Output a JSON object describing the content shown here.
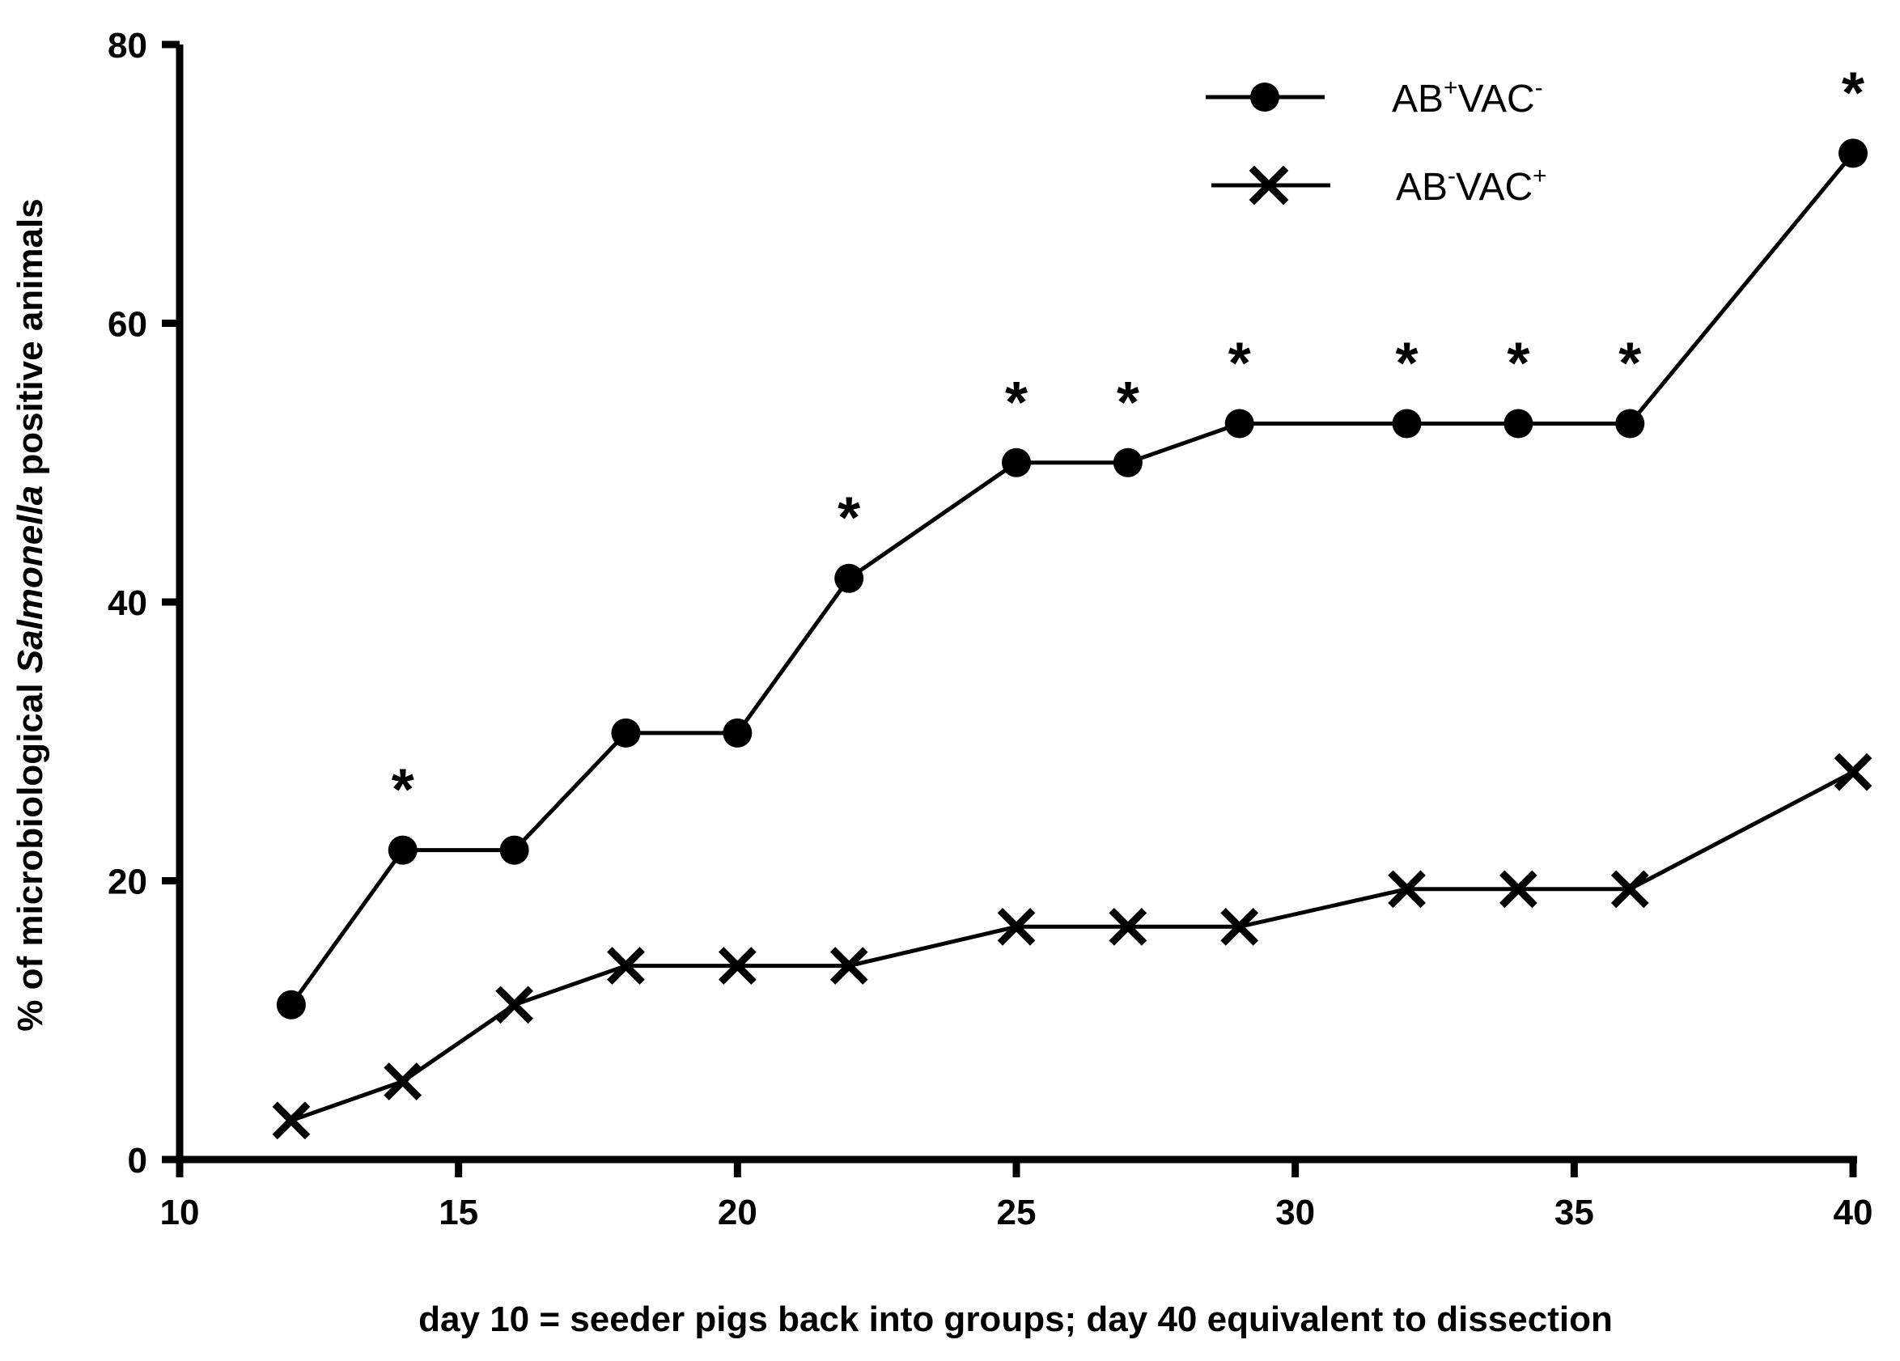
{
  "chart_data": {
    "type": "line",
    "title": "",
    "xlabel": "day 10 = seeder pigs back into groups; day 40 equivalent to dissection",
    "ylabel": {
      "before": "% of microbiological ",
      "italic": "Salmonella",
      "after": " positive animals"
    },
    "xlim": [
      10,
      40
    ],
    "ylim": [
      0,
      80
    ],
    "x_ticks": [
      10,
      15,
      20,
      25,
      30,
      35,
      40
    ],
    "y_ticks": [
      0,
      20,
      40,
      60,
      80
    ],
    "x": [
      12,
      14,
      16,
      18,
      20,
      22,
      25,
      27,
      29,
      32,
      34,
      36,
      40
    ],
    "series": [
      {
        "name": "AB+VAC-",
        "label": {
          "a": "AB",
          "a_sup": "+",
          "b": "VAC",
          "b_sup": "-"
        },
        "marker": "circle",
        "values": [
          11.1,
          22.2,
          22.2,
          30.6,
          30.6,
          41.7,
          50.0,
          50.0,
          52.8,
          52.8,
          52.8,
          52.8,
          72.2
        ]
      },
      {
        "name": "AB-VAC+",
        "label": {
          "a": "AB",
          "a_sup": "-",
          "b": "VAC",
          "b_sup": "+"
        },
        "marker": "x",
        "values": [
          2.8,
          5.6,
          11.1,
          13.9,
          13.9,
          13.9,
          16.7,
          16.7,
          16.7,
          19.4,
          19.4,
          19.4,
          27.8
        ]
      }
    ],
    "significance": {
      "symbol": "*",
      "x": [
        14,
        22,
        25,
        27,
        29,
        32,
        34,
        36,
        40
      ]
    },
    "grid": false,
    "legend_position": "top-right",
    "colors": {
      "line": "#000000",
      "background": "#ffffff"
    }
  }
}
